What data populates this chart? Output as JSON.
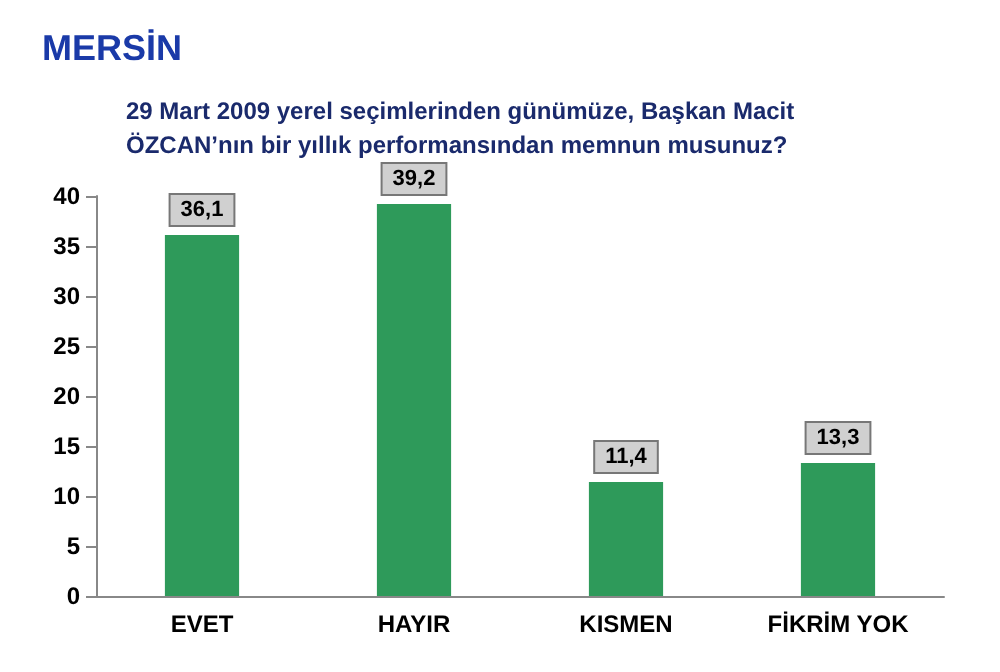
{
  "chart_data": {
    "type": "bar",
    "title": "MERSİN",
    "subtitle": "29 Mart 2009 yerel seçimlerinden günümüze, Başkan Macit ÖZCAN’nın bir yıllık performansından memnun musunuz?",
    "categories": [
      "EVET",
      "HAYIR",
      "KISMEN",
      "FİKRİM YOK"
    ],
    "values": [
      36.1,
      39.2,
      11.4,
      13.3
    ],
    "value_labels": [
      "36,1",
      "39,2",
      "11,4",
      "13,3"
    ],
    "color": "#2e9a5a",
    "ylim": [
      0,
      40
    ],
    "yticks": [
      0,
      5,
      10,
      15,
      20,
      25,
      30,
      35,
      40
    ],
    "grid": false
  }
}
